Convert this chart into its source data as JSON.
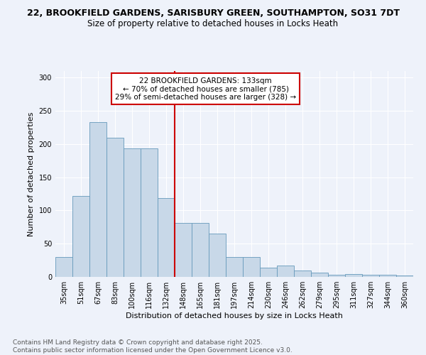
{
  "title_line1": "22, BROOKFIELD GARDENS, SARISBURY GREEN, SOUTHAMPTON, SO31 7DT",
  "title_line2": "Size of property relative to detached houses in Locks Heath",
  "xlabel": "Distribution of detached houses by size in Locks Heath",
  "ylabel": "Number of detached properties",
  "categories": [
    "35sqm",
    "51sqm",
    "67sqm",
    "83sqm",
    "100sqm",
    "116sqm",
    "132sqm",
    "148sqm",
    "165sqm",
    "181sqm",
    "197sqm",
    "214sqm",
    "230sqm",
    "246sqm",
    "262sqm",
    "279sqm",
    "295sqm",
    "311sqm",
    "327sqm",
    "344sqm",
    "360sqm"
  ],
  "values": [
    30,
    122,
    233,
    210,
    193,
    193,
    119,
    81,
    81,
    65,
    30,
    30,
    14,
    17,
    10,
    6,
    3,
    4,
    3,
    3,
    2
  ],
  "bar_color": "#c8d8e8",
  "bar_edge_color": "#6699bb",
  "vline_color": "#cc0000",
  "annotation_title": "22 BROOKFIELD GARDENS: 133sqm",
  "annotation_line2": "← 70% of detached houses are smaller (785)",
  "annotation_line3": "29% of semi-detached houses are larger (328) →",
  "annotation_box_color": "#ffffff",
  "annotation_box_edge": "#cc0000",
  "ylim": [
    0,
    310
  ],
  "yticks": [
    0,
    50,
    100,
    150,
    200,
    250,
    300
  ],
  "footnote": "Contains HM Land Registry data © Crown copyright and database right 2025.\nContains public sector information licensed under the Open Government Licence v3.0.",
  "bg_color": "#eef2fa",
  "title_fontsize": 9,
  "subtitle_fontsize": 8.5,
  "axis_label_fontsize": 8,
  "tick_fontsize": 7,
  "annotation_fontsize": 7.5,
  "footnote_fontsize": 6.5
}
